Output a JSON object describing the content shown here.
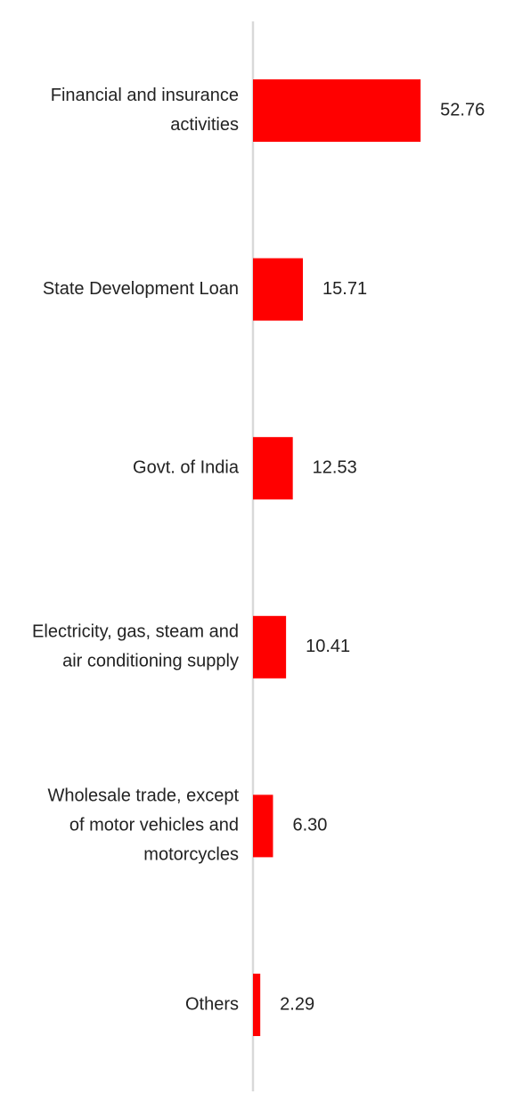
{
  "chart_data": {
    "type": "bar",
    "orientation": "horizontal",
    "categories": [
      "Financial and insurance activities",
      "State Development Loan",
      "Govt. of India",
      "Electricity, gas, steam and air conditioning supply",
      "Wholesale trade, except of motor vehicles and motorcycles",
      "Others"
    ],
    "category_label_lines": [
      [
        "Financial and insurance",
        "activities"
      ],
      [
        "State Development Loan"
      ],
      [
        "Govt. of India"
      ],
      [
        "Electricity, gas, steam and",
        "air conditioning supply"
      ],
      [
        "Wholesale trade, except",
        "of motor vehicles and",
        "motorcycles"
      ],
      [
        "Others"
      ]
    ],
    "values": [
      52.76,
      15.71,
      12.53,
      10.41,
      6.3,
      2.29
    ],
    "value_labels": [
      "52.76",
      "15.71",
      "12.53",
      "10.41",
      "6.30",
      "2.29"
    ],
    "xlim": [
      0,
      53
    ],
    "grid": false,
    "legend": "none",
    "bar_color": "#ff0000",
    "axis_color": "#d9d9d9"
  }
}
